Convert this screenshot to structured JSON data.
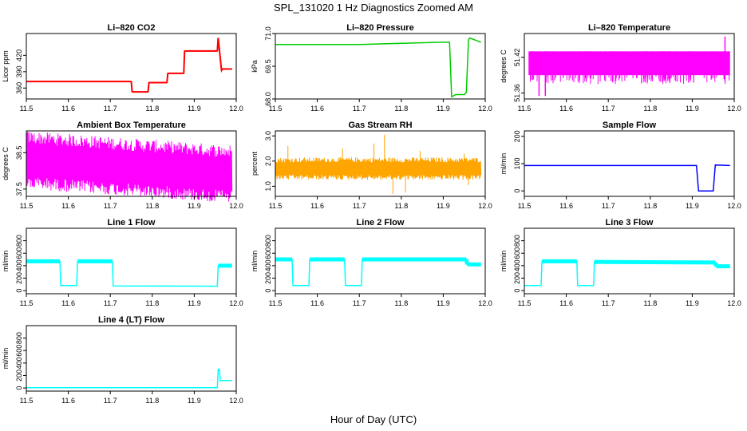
{
  "page": {
    "title": "SPL_131020  1 Hz Diagnostics Zoomed AM",
    "xlabel": "Hour of Day (UTC)"
  },
  "chart_data": [
    {
      "type": "line",
      "title": "Li–820 CO2",
      "ylabel": "Licor ppm",
      "color": "#ff0000",
      "xlim": [
        11.5,
        12.0
      ],
      "ylim": [
        340,
        460
      ],
      "xticks": [
        11.5,
        11.6,
        11.7,
        11.8,
        11.9,
        12.0
      ],
      "yticks": [
        {
          "v": 360,
          "label": "360"
        },
        {
          "v": 390,
          "label": "390"
        },
        {
          "v": 420,
          "label": "420"
        }
      ],
      "x": [
        11.5,
        11.75,
        11.752,
        11.79,
        11.792,
        11.835,
        11.837,
        11.875,
        11.877,
        11.955,
        11.957,
        11.965,
        11.967,
        11.99
      ],
      "y": [
        372,
        372,
        353,
        353,
        370,
        370,
        387,
        387,
        428,
        428,
        452,
        392,
        395,
        395
      ]
    },
    {
      "type": "line",
      "title": "Li–820 Pressure",
      "ylabel": "kPa",
      "color": "#00cc00",
      "xlim": [
        11.5,
        12.0
      ],
      "ylim": [
        68.0,
        71.0
      ],
      "xticks": [
        11.5,
        11.6,
        11.7,
        11.8,
        11.9,
        12.0
      ],
      "yticks": [
        {
          "v": 68.0,
          "label": "68.0"
        },
        {
          "v": 69.5,
          "label": "69.5"
        },
        {
          "v": 71.0,
          "label": "71.0"
        }
      ],
      "x": [
        11.5,
        11.7,
        11.8,
        11.9,
        11.915,
        11.92,
        11.93,
        11.95,
        11.955,
        11.96,
        11.963,
        11.99
      ],
      "y": [
        70.5,
        70.5,
        70.55,
        70.6,
        70.6,
        68.1,
        68.2,
        68.2,
        68.3,
        70.7,
        70.8,
        70.6
      ]
    },
    {
      "type": "line",
      "title": "Li–820 Temperature",
      "ylabel": "degrees C",
      "color": "#ff00ff",
      "xlim": [
        11.5,
        12.0
      ],
      "ylim": [
        51.35,
        51.46
      ],
      "xticks": [
        11.5,
        11.6,
        11.7,
        11.8,
        11.9,
        12.0
      ],
      "yticks": [
        {
          "v": 51.36,
          "label": "51.36"
        },
        {
          "v": 51.42,
          "label": "51.42"
        }
      ],
      "x": [
        11.5,
        11.99
      ],
      "y": [
        51.4,
        51.4
      ]
    },
    {
      "type": "line",
      "title": "Ambient Box Temperature",
      "ylabel": "degrees C",
      "color": "#ff00ff",
      "xlim": [
        11.5,
        12.0
      ],
      "ylim": [
        37.3,
        39.1
      ],
      "xticks": [
        11.5,
        11.6,
        11.7,
        11.8,
        11.9,
        12.0
      ],
      "yticks": [
        {
          "v": 37.5,
          "label": "37.5"
        },
        {
          "v": 38.5,
          "label": "38.5"
        }
      ],
      "x": [
        11.5,
        11.99
      ],
      "y": [
        38.0,
        38.0
      ]
    },
    {
      "type": "line",
      "title": "Gas Stream RH",
      "ylabel": "percent",
      "color": "#ffa500",
      "xlim": [
        11.5,
        12.0
      ],
      "ylim": [
        0.6,
        3.2
      ],
      "xticks": [
        11.5,
        11.6,
        11.7,
        11.8,
        11.9,
        12.0
      ],
      "yticks": [
        {
          "v": 1.0,
          "label": "1.0"
        },
        {
          "v": 2.0,
          "label": "2.0"
        },
        {
          "v": 3.0,
          "label": "3.0"
        }
      ],
      "x": [
        11.5,
        11.99
      ],
      "y": [
        1.7,
        1.7
      ]
    },
    {
      "type": "line",
      "title": "Sample Flow",
      "ylabel": "ml/min",
      "color": "#0000ff",
      "xlim": [
        11.5,
        12.0
      ],
      "ylim": [
        -20,
        220
      ],
      "xticks": [
        11.5,
        11.6,
        11.7,
        11.8,
        11.9,
        12.0
      ],
      "yticks": [
        {
          "v": 0,
          "label": "0"
        },
        {
          "v": 100,
          "label": "100"
        },
        {
          "v": 200,
          "label": "200"
        }
      ],
      "x": [
        11.5,
        11.91,
        11.915,
        11.95,
        11.955,
        11.99
      ],
      "y": [
        93,
        93,
        0,
        0,
        95,
        93
      ]
    },
    {
      "type": "line",
      "title": "Line 1 Flow",
      "ylabel": "ml/min",
      "color": "#00ffff",
      "xlim": [
        11.5,
        12.0
      ],
      "ylim": [
        -50,
        1000
      ],
      "xticks": [
        11.5,
        11.6,
        11.7,
        11.8,
        11.9,
        12.0
      ],
      "yticks": [
        {
          "v": 0,
          "label": "0"
        },
        {
          "v": 200,
          "label": "200"
        },
        {
          "v": 400,
          "label": "400"
        },
        {
          "v": 600,
          "label": "600"
        },
        {
          "v": 800,
          "label": "800"
        }
      ],
      "x": [
        11.5,
        11.58,
        11.582,
        11.62,
        11.622,
        11.705,
        11.707,
        11.955,
        11.957,
        11.99
      ],
      "y": [
        470,
        470,
        80,
        80,
        470,
        470,
        75,
        70,
        400,
        400
      ]
    },
    {
      "type": "line",
      "title": "Line 2 Flow",
      "ylabel": "ml/min",
      "color": "#00ffff",
      "xlim": [
        11.5,
        12.0
      ],
      "ylim": [
        -50,
        1000
      ],
      "xticks": [
        11.5,
        11.6,
        11.7,
        11.8,
        11.9,
        12.0
      ],
      "yticks": [
        {
          "v": 0,
          "label": "0"
        },
        {
          "v": 200,
          "label": "200"
        },
        {
          "v": 400,
          "label": "400"
        },
        {
          "v": 600,
          "label": "600"
        },
        {
          "v": 800,
          "label": "800"
        }
      ],
      "x": [
        11.5,
        11.54,
        11.542,
        11.58,
        11.582,
        11.665,
        11.667,
        11.705,
        11.707,
        11.955,
        11.957,
        11.99
      ],
      "y": [
        500,
        500,
        80,
        80,
        500,
        500,
        80,
        80,
        500,
        500,
        420,
        420
      ]
    },
    {
      "type": "line",
      "title": "Line 3 Flow",
      "ylabel": "ml/min",
      "color": "#00ffff",
      "xlim": [
        11.5,
        12.0
      ],
      "ylim": [
        -50,
        1000
      ],
      "xticks": [
        11.5,
        11.6,
        11.7,
        11.8,
        11.9,
        12.0
      ],
      "yticks": [
        {
          "v": 0,
          "label": "0"
        },
        {
          "v": 200,
          "label": "200"
        },
        {
          "v": 400,
          "label": "400"
        },
        {
          "v": 600,
          "label": "600"
        },
        {
          "v": 800,
          "label": "800"
        }
      ],
      "x": [
        11.5,
        11.54,
        11.542,
        11.625,
        11.627,
        11.665,
        11.667,
        11.955,
        11.957,
        11.99
      ],
      "y": [
        80,
        80,
        470,
        470,
        80,
        80,
        460,
        450,
        390,
        390
      ]
    },
    {
      "type": "line",
      "title": "Line 4 (LT) Flow",
      "ylabel": "ml/min",
      "color": "#00ffff",
      "xlim": [
        11.5,
        12.0
      ],
      "ylim": [
        -50,
        1000
      ],
      "xticks": [
        11.5,
        11.6,
        11.7,
        11.8,
        11.9,
        12.0
      ],
      "yticks": [
        {
          "v": 0,
          "label": "0"
        },
        {
          "v": 200,
          "label": "200"
        },
        {
          "v": 400,
          "label": "400"
        },
        {
          "v": 600,
          "label": "600"
        },
        {
          "v": 800,
          "label": "800"
        }
      ],
      "x": [
        11.5,
        11.955,
        11.957,
        11.96,
        11.962,
        11.99
      ],
      "y": [
        5,
        5,
        300,
        300,
        120,
        120
      ]
    }
  ]
}
